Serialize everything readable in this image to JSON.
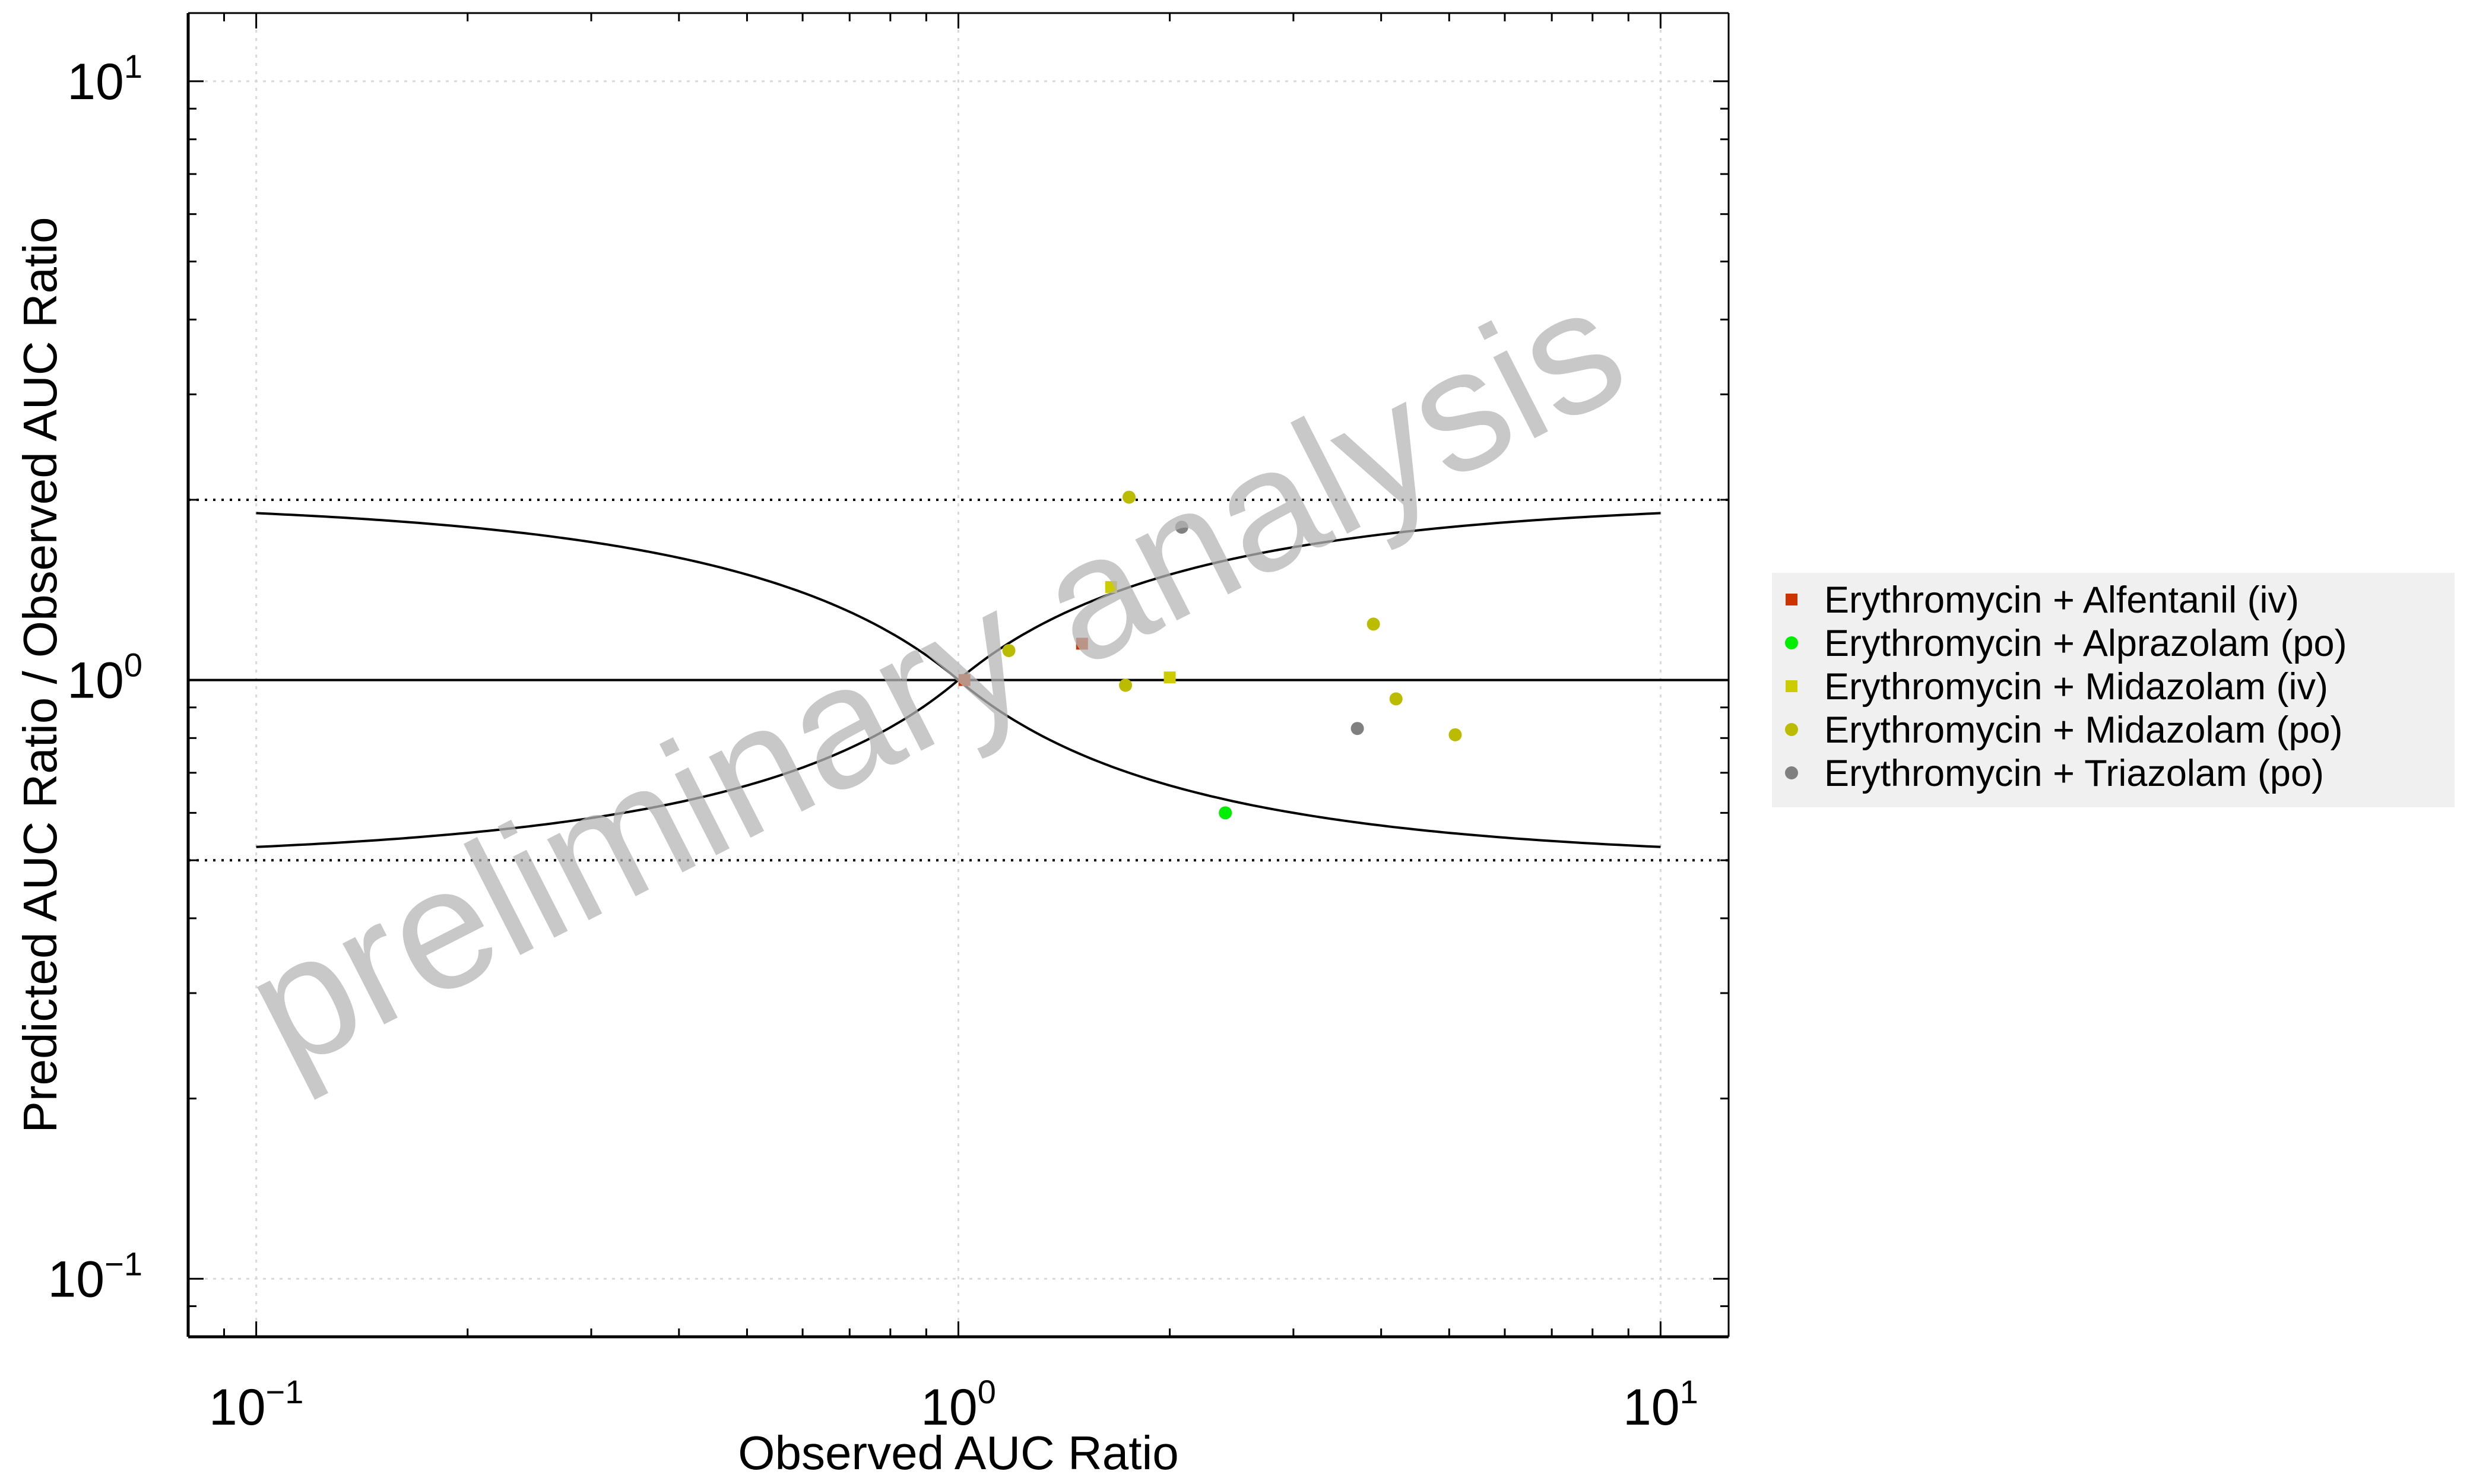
{
  "chart_data": {
    "type": "scatter",
    "title": "",
    "xlabel": "Observed AUC Ratio",
    "ylabel": "Predicted AUC Ratio / Observed AUC Ratio",
    "xscale": "log",
    "yscale": "log",
    "xlim": [
      0.08,
      12.5
    ],
    "ylim": [
      0.08,
      13
    ],
    "x_ticks": [
      0.1,
      1,
      10
    ],
    "y_ticks": [
      0.1,
      1,
      10
    ],
    "tick_labels": {
      "x": [
        {
          "base": "10",
          "exp": "−1"
        },
        {
          "base": "10",
          "exp": "0"
        },
        {
          "base": "10",
          "exp": "1"
        }
      ],
      "y": [
        {
          "base": "10",
          "exp": "−1"
        },
        {
          "base": "10",
          "exp": "0"
        },
        {
          "base": "10",
          "exp": "1"
        }
      ]
    },
    "grid": true,
    "legend_position": "right",
    "watermark": "preliminary analysis",
    "reference_lines": {
      "unity": 1,
      "fold_limits": [
        0.5,
        2
      ],
      "guest_limits_x_range": [
        0.1,
        10
      ],
      "guest_delta": 1
    },
    "series": [
      {
        "name": "Erythromycin + Alfentanil (iv)",
        "color": "#cc3300",
        "marker": "square",
        "points": [
          [
            1.02,
            1.0
          ],
          [
            1.5,
            1.15
          ]
        ]
      },
      {
        "name": "Erythromycin + Alprazolam (po)",
        "color": "#00ee00",
        "marker": "circle",
        "points": [
          [
            2.4,
            0.6
          ]
        ]
      },
      {
        "name": "Erythromycin + Midazolam (iv)",
        "color": "#cccc00",
        "marker": "square",
        "points": [
          [
            1.65,
            1.43
          ],
          [
            2.0,
            1.01
          ]
        ]
      },
      {
        "name": "Erythromycin + Midazolam (po)",
        "color": "#bbbb00",
        "marker": "circle",
        "points": [
          [
            1.18,
            1.12
          ],
          [
            1.75,
            2.02
          ],
          [
            1.73,
            0.98
          ],
          [
            3.9,
            1.24
          ],
          [
            4.2,
            0.93
          ],
          [
            5.1,
            0.81
          ]
        ]
      },
      {
        "name": "Erythromycin + Triazolam (po)",
        "color": "#808080",
        "marker": "circle",
        "points": [
          [
            2.08,
            1.8
          ],
          [
            3.7,
            0.83
          ]
        ]
      }
    ]
  }
}
